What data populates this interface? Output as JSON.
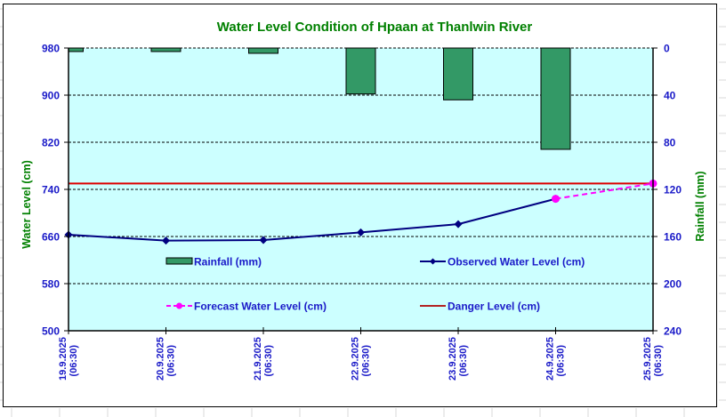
{
  "colors": {
    "plot_bg": "#CCFFFF",
    "rainfall": "#339966",
    "observed": "#000080",
    "forecast": "#FF00FF",
    "danger": "#DD0000",
    "title": "#008000",
    "tick": "#1a1ac8"
  },
  "chart_data": {
    "type": "bar+line",
    "title": "Water Level Condition of Hpaan at Thanlwin River",
    "xlabel": "",
    "ylabel": "Water Level (cm)",
    "y2label": "Rainfall (mm)",
    "categories": [
      [
        "19.9.2025",
        "(06:30)"
      ],
      [
        "20.9.2025",
        "(06:30)"
      ],
      [
        "21.9.2025",
        "(06:30)"
      ],
      [
        "22.9.2025",
        "(06:30)"
      ],
      [
        "23.9.2025",
        "(06:30)"
      ],
      [
        "24.9.2025",
        "(06:30)"
      ],
      [
        "25.9.2025",
        "(06:30)"
      ]
    ],
    "ylim": [
      500,
      980
    ],
    "yticks": [
      500,
      580,
      660,
      740,
      820,
      900,
      980
    ],
    "y2lim": [
      0,
      240
    ],
    "y2_reversed": true,
    "y2ticks": [
      0,
      40,
      80,
      120,
      160,
      200,
      240
    ],
    "grid": "horizontal dashed",
    "series": [
      {
        "name": "Rainfall (mm)",
        "type": "bar",
        "axis": "y2",
        "values": [
          3,
          3,
          4.5,
          39,
          44,
          86,
          null
        ]
      },
      {
        "name": "Observed Water Level (cm)",
        "type": "line",
        "axis": "y",
        "marker": "diamond",
        "values": [
          663,
          653,
          654,
          667,
          681,
          724,
          null
        ]
      },
      {
        "name": "Forecast Water Level (cm)",
        "type": "line",
        "axis": "y",
        "dashed": true,
        "marker": "circle",
        "values": [
          null,
          null,
          null,
          null,
          null,
          724,
          750
        ]
      },
      {
        "name": "Danger Level (cm)",
        "type": "hline",
        "axis": "y",
        "value": 750
      }
    ],
    "legend": {
      "placement": "inside-lower-center",
      "items": [
        {
          "label": "Rainfall (mm)",
          "key": "rainfall"
        },
        {
          "label": "Observed Water Level (cm)",
          "key": "observed"
        },
        {
          "label": "Forecast Water Level (cm)",
          "key": "forecast"
        },
        {
          "label": "Danger Level (cm)",
          "key": "danger"
        }
      ]
    }
  }
}
